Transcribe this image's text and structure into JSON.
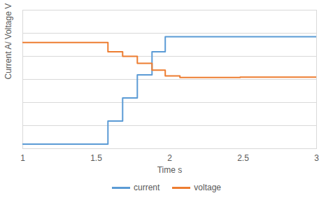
{
  "chart_data": {
    "type": "line",
    "x_label": "Time s",
    "y_label": "Current A/ Voltage V",
    "x": [
      1,
      1.58,
      1.58,
      1.68,
      1.68,
      1.78,
      1.78,
      1.88,
      1.88,
      1.97,
      1.97,
      2.07,
      2.07,
      2.48,
      2.48,
      3
    ],
    "series": [
      {
        "name": "current",
        "color": "#5b9bd5",
        "values": [
          0.2,
          0.2,
          1.2,
          1.2,
          2.2,
          2.2,
          3.2,
          3.2,
          4.2,
          4.2,
          4.85,
          4.85,
          4.85,
          4.85,
          4.85,
          4.85
        ]
      },
      {
        "name": "voltage",
        "color": "#ed7d31",
        "values": [
          4.6,
          4.6,
          4.2,
          4.2,
          4.0,
          4.0,
          3.7,
          3.7,
          3.4,
          3.4,
          3.15,
          3.15,
          3.08,
          3.08,
          3.1,
          3.1
        ]
      }
    ],
    "xlim": [
      1,
      3
    ],
    "xticks": [
      1,
      1.5,
      2,
      2.5,
      3
    ],
    "ylim": [
      0,
      6
    ],
    "yticks": [
      0,
      1,
      2,
      3,
      4,
      5,
      6
    ],
    "grid": true,
    "legend": "bottom",
    "tick_labels": "x"
  }
}
